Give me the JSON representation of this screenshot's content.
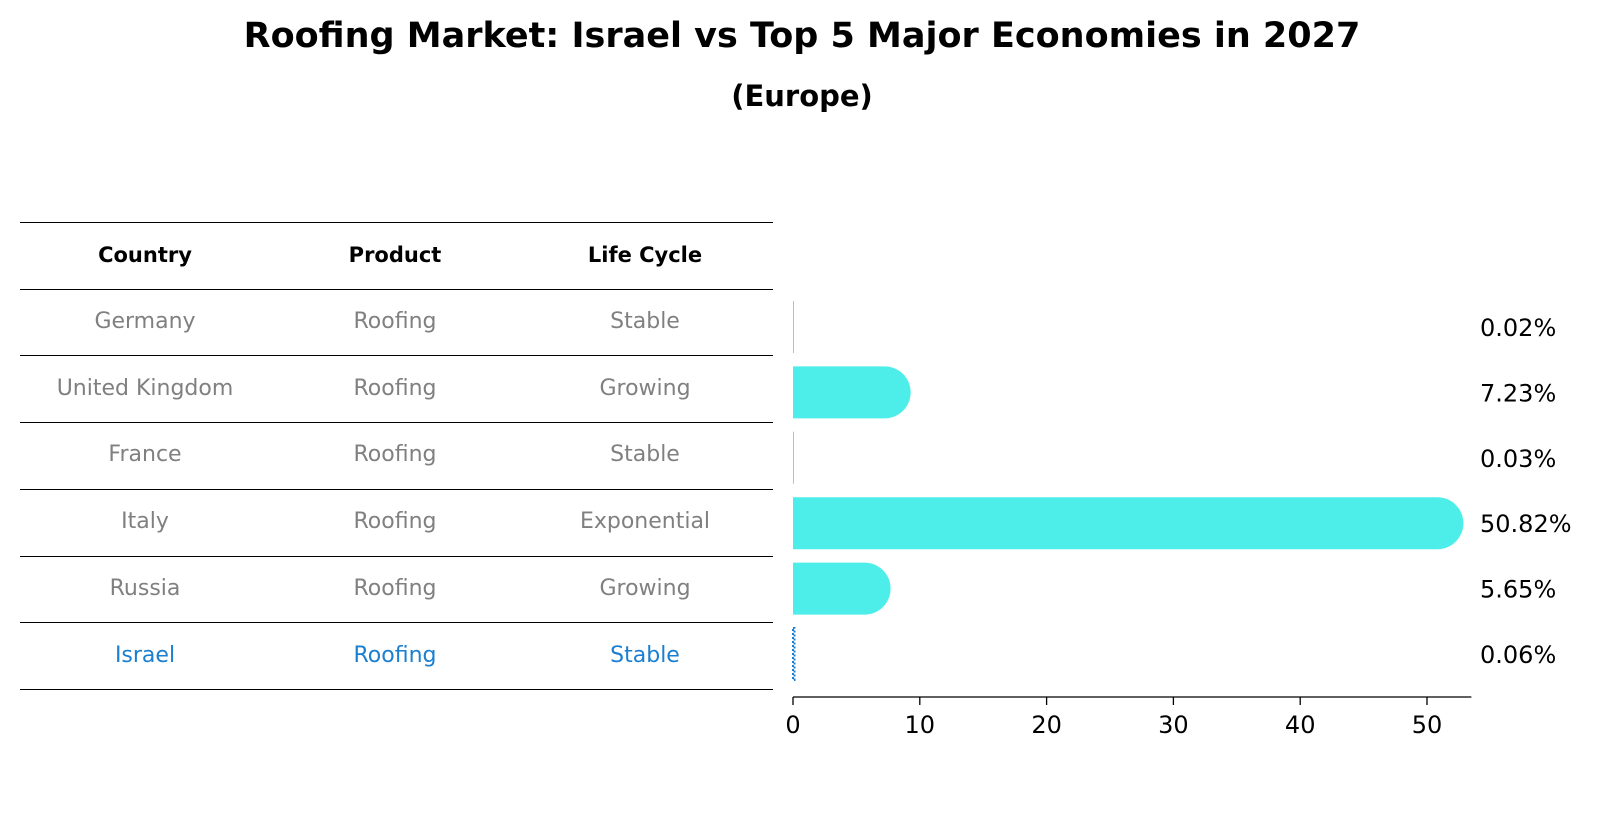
{
  "title": "Roofing Market: Israel vs Top 5 Major Economies in 2027",
  "subtitle": "(Europe)",
  "table": {
    "headers": [
      "Country",
      "Product",
      "Life Cycle"
    ],
    "rows": [
      [
        "Germany",
        "Roofing",
        "Stable"
      ],
      [
        "United Kingdom",
        "Roofing",
        "Growing"
      ],
      [
        "France",
        "Roofing",
        "Stable"
      ],
      [
        "Italy",
        "Roofing",
        "Exponential"
      ],
      [
        "Russia",
        "Roofing",
        "Growing"
      ],
      [
        "Israel",
        "Roofing",
        "Stable"
      ]
    ],
    "highlight_row": "Israel"
  },
  "colors": {
    "bar": "#4deeea",
    "highlight": "#1a7fd0",
    "muted_text": "#808080"
  },
  "chart_data": {
    "type": "bar",
    "orientation": "horizontal",
    "categories": [
      "Germany",
      "United Kingdom",
      "France",
      "Italy",
      "Russia",
      "Israel"
    ],
    "values": [
      0.02,
      7.23,
      0.03,
      50.82,
      5.65,
      0.06
    ],
    "value_labels": [
      "0.02%",
      "7.23%",
      "0.03%",
      "50.82%",
      "5.65%",
      "0.06%"
    ],
    "xlim": [
      0,
      53.5
    ],
    "xticks": [
      0,
      10,
      20,
      30,
      40,
      50
    ],
    "xlabel": "",
    "ylabel": "",
    "grid": false
  }
}
